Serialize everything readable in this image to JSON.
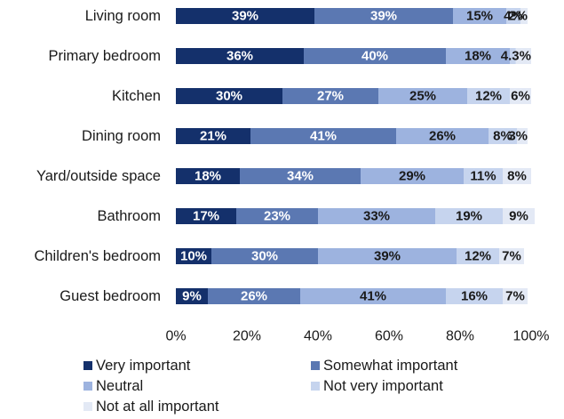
{
  "chart_data": {
    "type": "bar",
    "orientation": "horizontal",
    "stacked": true,
    "title": "",
    "xlabel": "",
    "ylabel": "",
    "xlim": [
      0,
      100
    ],
    "x_ticks": [
      "0%",
      "20%",
      "40%",
      "60%",
      "80%",
      "100%"
    ],
    "grid": false,
    "legend_position": "bottom",
    "categories": [
      "Living room",
      "Primary bedroom",
      "Kitchen",
      "Dining room",
      "Yard/outside space",
      "Bathroom",
      "Children's bedroom",
      "Guest bedroom"
    ],
    "series": [
      {
        "name": "Very important",
        "color": "#14306b",
        "text_color": "#ffffff",
        "values": [
          39,
          36,
          30,
          21,
          18,
          17,
          10,
          9
        ],
        "labels": [
          "39%",
          "36%",
          "30%",
          "21%",
          "18%",
          "17%",
          "10%",
          "9%"
        ]
      },
      {
        "name": "Somewhat important",
        "color": "#5b78b2",
        "text_color": "#ffffff",
        "values": [
          39,
          40,
          27,
          41,
          34,
          23,
          30,
          26
        ],
        "labels": [
          "39%",
          "40%",
          "27%",
          "41%",
          "34%",
          "23%",
          "30%",
          "26%"
        ]
      },
      {
        "name": "Neutral",
        "color": "#9db3df",
        "text_color": "#1a1a1a",
        "values": [
          15,
          18,
          25,
          26,
          29,
          33,
          39,
          41
        ],
        "labels": [
          "15%",
          "18%",
          "25%",
          "26%",
          "29%",
          "33%",
          "39%",
          "41%"
        ]
      },
      {
        "name": "Not very important",
        "color": "#c6d4ee",
        "text_color": "#1a1a1a",
        "values": [
          4,
          1.7,
          12,
          8,
          11,
          19,
          12,
          16
        ],
        "labels": [
          "4%",
          "",
          "12%",
          "8%",
          "11%",
          "19%",
          "12%",
          "16%"
        ]
      },
      {
        "name": "Not at all important",
        "color": "#e3e9f5",
        "text_color": "#1a1a1a",
        "values": [
          2,
          4.3,
          6,
          3,
          8,
          9,
          7,
          7
        ],
        "labels": [
          "2%",
          "4.3%",
          "6%",
          "3%",
          "8%",
          "9%",
          "7%",
          "7%"
        ]
      }
    ]
  }
}
